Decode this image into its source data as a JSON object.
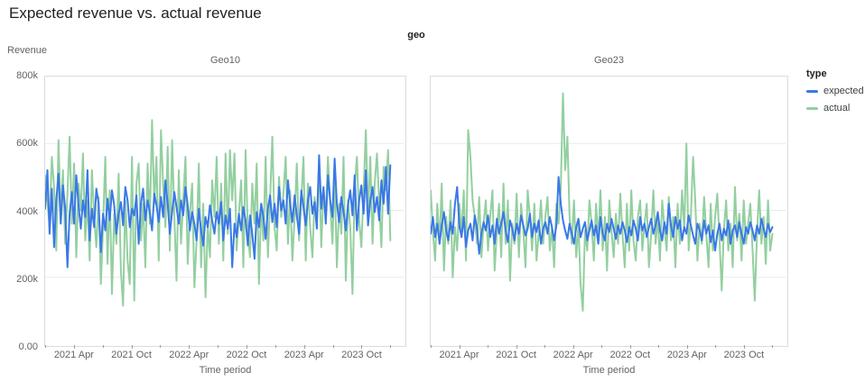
{
  "title": "Expected revenue vs. actual revenue",
  "facet_label": "geo",
  "y_axis_title": "Revenue",
  "x_axis_title": "Time period",
  "y_ticks": [
    "800k",
    "600k",
    "400k",
    "200k",
    "0.00"
  ],
  "x_ticks": [
    "2021 Apr",
    "2021 Oct",
    "2022 Apr",
    "2022 Oct",
    "2023 Apr",
    "2023 Oct"
  ],
  "legend": {
    "title": "type",
    "items": [
      {
        "label": "expected",
        "color": "#3a78e7"
      },
      {
        "label": "actual",
        "color": "#93cfa0"
      }
    ]
  },
  "chart_data": [
    {
      "type": "line",
      "title": "Geo10",
      "xlabel": "Time period",
      "ylabel": "Revenue",
      "x_start": "2021 Jan",
      "x_end": "2023 Dec",
      "x_interval": "weekly",
      "x_tick_labels": [
        "2021 Apr",
        "2021 Oct",
        "2022 Apr",
        "2022 Oct",
        "2023 Apr",
        "2023 Oct"
      ],
      "y_tick_labels": [
        "0.00",
        "200k",
        "400k",
        "600k",
        "800k"
      ],
      "values_in": "thousands",
      "ylim": [
        0,
        800
      ],
      "grid": true,
      "series": [
        {
          "name": "expected",
          "color": "#3a78e7",
          "values": [
            405,
            520,
            330,
            465,
            290,
            430,
            510,
            360,
            475,
            405,
            230,
            390,
            455,
            360,
            505,
            415,
            345,
            430,
            380,
            520,
            310,
            405,
            350,
            465,
            420,
            275,
            390,
            340,
            435,
            370,
            460,
            415,
            330,
            390,
            425,
            355,
            470,
            430,
            350,
            405,
            385,
            445,
            300,
            420,
            465,
            370,
            430,
            395,
            340,
            450,
            415,
            365,
            440,
            380,
            490,
            420,
            330,
            395,
            455,
            410,
            360,
            430,
            385,
            470,
            415,
            340,
            395,
            360,
            310,
            405,
            340,
            295,
            380,
            350,
            415,
            370,
            330,
            395,
            360,
            425,
            310,
            385,
            345,
            405,
            230,
            360,
            320,
            390,
            340,
            410,
            370,
            295,
            385,
            330,
            255,
            395,
            350,
            420,
            380,
            315,
            405,
            445,
            365,
            420,
            350,
            470,
            400,
            430,
            360,
            490,
            420,
            365,
            445,
            385,
            330,
            460,
            410,
            355,
            430,
            470,
            390,
            425,
            345,
            565,
            405,
            470,
            360,
            505,
            430,
            380,
            555,
            420,
            365,
            440,
            395,
            340,
            415,
            460,
            385,
            505,
            340,
            430,
            475,
            390,
            520,
            355,
            430,
            470,
            395,
            440,
            370,
            490,
            420,
            530,
            390,
            535
          ]
        },
        {
          "name": "actual",
          "color": "#93cfa0",
          "values": [
            505,
            430,
            350,
            560,
            470,
            280,
            610,
            380,
            520,
            300,
            450,
            620,
            360,
            540,
            260,
            480,
            400,
            570,
            310,
            430,
            250,
            520,
            380,
            290,
            440,
            180,
            350,
            560,
            240,
            460,
            150,
            390,
            300,
            510,
            220,
            115,
            430,
            250,
            180,
            560,
            130,
            480,
            540,
            310,
            420,
            230,
            540,
            360,
            670,
            420,
            560,
            250,
            640,
            480,
            350,
            590,
            280,
            610,
            380,
            190,
            520,
            300,
            430,
            560,
            240,
            390,
            480,
            170,
            310,
            540,
            230,
            420,
            140,
            360,
            260,
            490,
            380,
            560,
            300,
            480,
            250,
            570,
            330,
            580,
            430,
            570,
            280,
            390,
            490,
            230,
            580,
            330,
            260,
            480,
            360,
            540,
            180,
            420,
            310,
            560,
            260,
            430,
            620,
            350,
            280,
            500,
            380,
            450,
            560,
            300,
            460,
            250,
            380,
            540,
            310,
            430,
            560,
            250,
            480,
            350,
            260,
            440,
            370,
            550,
            290,
            460,
            380,
            560,
            420,
            300,
            510,
            230,
            420,
            330,
            560,
            190,
            430,
            350,
            150,
            470,
            560,
            370,
            290,
            460,
            640,
            380,
            560,
            300,
            480,
            570,
            420,
            290,
            530,
            460,
            580,
            310
          ]
        }
      ]
    },
    {
      "type": "line",
      "title": "Geo23",
      "xlabel": "Time period",
      "ylabel": "Revenue",
      "x_start": "2021 Jan",
      "x_end": "2023 Dec",
      "x_interval": "weekly",
      "x_tick_labels": [
        "2021 Apr",
        "2021 Oct",
        "2022 Apr",
        "2022 Oct",
        "2023 Apr",
        "2023 Oct"
      ],
      "y_tick_labels": [
        "0.00",
        "200k",
        "400k",
        "600k",
        "800k"
      ],
      "values_in": "thousands",
      "ylim": [
        0,
        800
      ],
      "grid": true,
      "series": [
        {
          "name": "expected",
          "color": "#3a78e7",
          "values": [
            330,
            380,
            320,
            360,
            300,
            355,
            395,
            340,
            310,
            365,
            330,
            420,
            470,
            355,
            320,
            380,
            290,
            340,
            360,
            310,
            385,
            345,
            270,
            330,
            365,
            340,
            385,
            320,
            355,
            300,
            375,
            330,
            360,
            395,
            340,
            305,
            370,
            345,
            310,
            360,
            330,
            385,
            355,
            325,
            345,
            390,
            320,
            360,
            335,
            370,
            300,
            345,
            365,
            330,
            380,
            350,
            310,
            355,
            500,
            420,
            370,
            340,
            315,
            360,
            330,
            300,
            350,
            375,
            320,
            345,
            365,
            310,
            340,
            370,
            325,
            355,
            300,
            380,
            330,
            310,
            360,
            335,
            375,
            345,
            315,
            355,
            330,
            365,
            340,
            305,
            350,
            325,
            370,
            345,
            310,
            380,
            340,
            360,
            320,
            350,
            375,
            330,
            355,
            395,
            340,
            310,
            365,
            330,
            420,
            355,
            320,
            380,
            345,
            370,
            310,
            350,
            330,
            385,
            355,
            325,
            300,
            360,
            340,
            310,
            370,
            330,
            355,
            305,
            340,
            280,
            330,
            360,
            310,
            345,
            325,
            370,
            300,
            340,
            355,
            320,
            365,
            330,
            300,
            350,
            330,
            365,
            340,
            310,
            355,
            330,
            375,
            345,
            320,
            360,
            335,
            350
          ]
        },
        {
          "name": "actual",
          "color": "#93cfa0",
          "values": [
            460,
            340,
            250,
            420,
            300,
            480,
            220,
            380,
            300,
            430,
            200,
            350,
            280,
            420,
            330,
            460,
            250,
            640,
            560,
            430,
            380,
            300,
            440,
            260,
            360,
            430,
            280,
            380,
            460,
            220,
            340,
            420,
            260,
            480,
            300,
            430,
            190,
            360,
            300,
            450,
            260,
            420,
            340,
            230,
            460,
            380,
            280,
            420,
            250,
            330,
            430,
            300,
            380,
            440,
            280,
            350,
            230,
            420,
            360,
            470,
            750,
            520,
            620,
            380,
            300,
            430,
            260,
            360,
            180,
            100,
            340,
            280,
            430,
            360,
            250,
            420,
            310,
            460,
            280,
            380,
            220,
            430,
            340,
            260,
            390,
            300,
            450,
            330,
            230,
            420,
            280,
            460,
            310,
            250,
            380,
            430,
            280,
            360,
            420,
            230,
            330,
            460,
            300,
            380,
            250,
            430,
            350,
            280,
            440,
            310,
            380,
            230,
            420,
            300,
            460,
            340,
            600,
            280,
            380,
            560,
            430,
            250,
            360,
            300,
            440,
            330,
            230,
            420,
            280,
            380,
            450,
            310,
            160,
            340,
            430,
            280,
            360,
            230,
            470,
            310,
            390,
            250,
            430,
            300,
            360,
            420,
            280,
            130,
            330,
            460,
            300,
            380,
            240,
            430,
            280,
            330
          ]
        }
      ]
    }
  ],
  "style": {
    "grid_color": "#e8eaed",
    "panel_border_color": "#dadce0",
    "tick_color": "#9aa0a6"
  }
}
